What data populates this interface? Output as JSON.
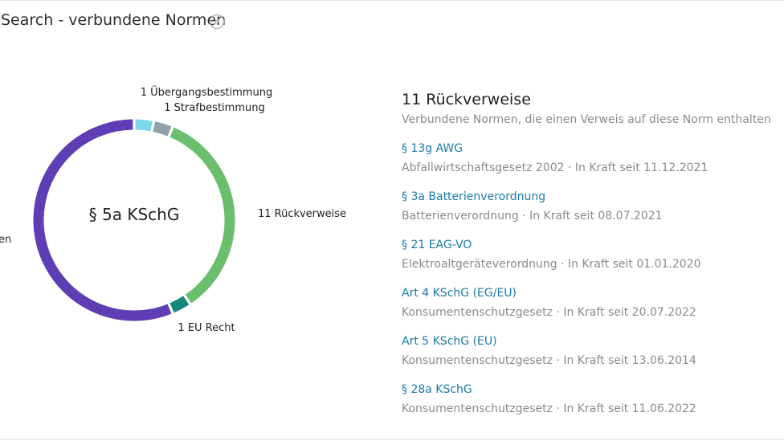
{
  "panel": {
    "title": "Search - verbundene Normen",
    "title_icon": "compass-icon"
  },
  "colors": {
    "purple": "#5f3db5",
    "green": "#6bbe6e",
    "teal": "#15877a",
    "cyan": "#7ad8ea",
    "grey": "#8fa2ab",
    "link": "#1a7aa5"
  },
  "chart_data": {
    "type": "pie",
    "center_label": "§ 5a KSchG",
    "segments": [
      {
        "label": "1 Übergangsbestimmung",
        "value": 1,
        "color": "#7ad8ea"
      },
      {
        "label": "1 Strafbestimmung",
        "value": 1,
        "color": "#8fa2ab"
      },
      {
        "label": "11 Rückverweise",
        "value": 11,
        "color": "#6bbe6e"
      },
      {
        "label": "1 EU Recht",
        "value": 1,
        "color": "#15877a"
      },
      {
        "label": "en",
        "value": 18,
        "color": "#5f3db5"
      }
    ]
  },
  "summary": {
    "heading": "11 Rückverweise",
    "subtitle": "Verbundene Normen, die einen Verweis auf diese Norm enthalten"
  },
  "norms": [
    {
      "title": "§ 13g AWG",
      "meta": "Abfallwirtschaftsgesetz 2002 · In Kraft seit 11.12.2021"
    },
    {
      "title": "§ 3a Batterienverordnung",
      "meta": "Batterienverordnung · In Kraft seit 08.07.2021"
    },
    {
      "title": "§ 21 EAG-VO",
      "meta": "Elektroaltgeräteverordnung · In Kraft seit 01.01.2020"
    },
    {
      "title": "Art 4 KSchG (EG/EU)",
      "meta": "Konsumentenschutzgesetz · In Kraft seit 20.07.2022"
    },
    {
      "title": "Art 5 KSchG (EU)",
      "meta": "Konsumentenschutzgesetz · In Kraft seit 13.06.2014"
    },
    {
      "title": "§ 28a KSchG",
      "meta": "Konsumentenschutzgesetz · In Kraft seit 11.06.2022"
    }
  ]
}
